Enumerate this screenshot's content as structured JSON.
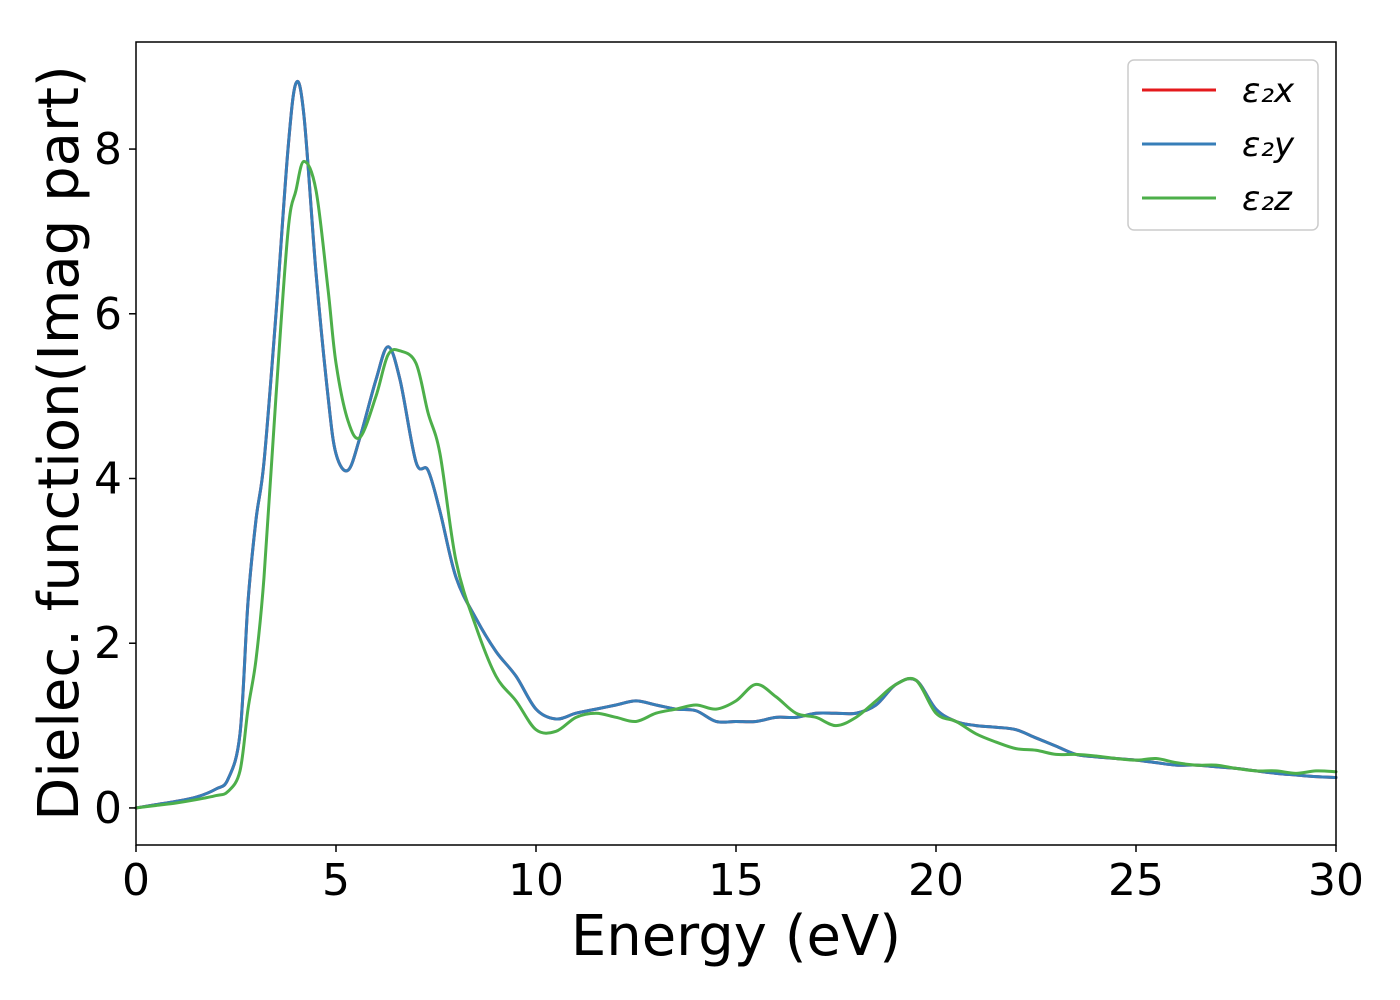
{
  "chart_data": {
    "type": "line",
    "xlabel": "Energy (eV)",
    "ylabel": "Dielec. function(Imag part)",
    "xlim": [
      0,
      30
    ],
    "ylim": [
      -0.45,
      9.3
    ],
    "xticks": [
      0,
      5,
      10,
      15,
      20,
      25,
      30
    ],
    "yticks": [
      0,
      2,
      4,
      6,
      8
    ],
    "grid": false,
    "legend_position": "top-right",
    "x": [
      0,
      0.5,
      1,
      1.5,
      2,
      2.3,
      2.6,
      2.8,
      3,
      3.2,
      3.5,
      3.8,
      4,
      4.2,
      4.5,
      4.8,
      5,
      5.3,
      5.6,
      6,
      6.3,
      6.6,
      7,
      7.3,
      7.6,
      8,
      8.5,
      9,
      9.5,
      10,
      10.5,
      11,
      11.5,
      12,
      12.5,
      13,
      13.5,
      14,
      14.5,
      15,
      15.5,
      16,
      16.5,
      17,
      17.5,
      18,
      18.5,
      19,
      19.5,
      20,
      20.5,
      21,
      21.5,
      22,
      22.5,
      23,
      23.5,
      24,
      24.5,
      25,
      25.5,
      26,
      26.5,
      27,
      27.5,
      28,
      28.5,
      29,
      29.5,
      30
    ],
    "series": [
      {
        "name": "ε₂x",
        "color": "#e41a1c",
        "values": [
          0,
          0.04,
          0.08,
          0.13,
          0.23,
          0.35,
          0.9,
          2.5,
          3.5,
          4.2,
          6.0,
          8.0,
          8.8,
          8.4,
          6.5,
          5.0,
          4.3,
          4.1,
          4.5,
          5.2,
          5.6,
          5.2,
          4.2,
          4.1,
          3.6,
          2.8,
          2.3,
          1.9,
          1.6,
          1.2,
          1.08,
          1.15,
          1.2,
          1.25,
          1.3,
          1.25,
          1.2,
          1.18,
          1.05,
          1.05,
          1.05,
          1.1,
          1.1,
          1.15,
          1.15,
          1.15,
          1.25,
          1.5,
          1.55,
          1.2,
          1.05,
          1.0,
          0.98,
          0.95,
          0.85,
          0.75,
          0.65,
          0.62,
          0.6,
          0.58,
          0.55,
          0.52,
          0.52,
          0.5,
          0.48,
          0.45,
          0.42,
          0.4,
          0.38,
          0.37
        ]
      },
      {
        "name": "ε₂y",
        "color": "#377eb8",
        "values": [
          0,
          0.04,
          0.08,
          0.13,
          0.23,
          0.35,
          0.9,
          2.5,
          3.5,
          4.2,
          6.0,
          8.0,
          8.8,
          8.4,
          6.5,
          5.0,
          4.3,
          4.1,
          4.5,
          5.2,
          5.6,
          5.2,
          4.2,
          4.1,
          3.6,
          2.8,
          2.3,
          1.9,
          1.6,
          1.2,
          1.08,
          1.15,
          1.2,
          1.25,
          1.3,
          1.25,
          1.2,
          1.18,
          1.05,
          1.05,
          1.05,
          1.1,
          1.1,
          1.15,
          1.15,
          1.15,
          1.25,
          1.5,
          1.55,
          1.2,
          1.05,
          1.0,
          0.98,
          0.95,
          0.85,
          0.75,
          0.65,
          0.62,
          0.6,
          0.58,
          0.55,
          0.52,
          0.52,
          0.5,
          0.48,
          0.45,
          0.42,
          0.4,
          0.38,
          0.37
        ]
      },
      {
        "name": "ε₂z",
        "color": "#4daf4a",
        "values": [
          0,
          0.03,
          0.06,
          0.1,
          0.15,
          0.2,
          0.45,
          1.2,
          1.8,
          2.8,
          5.0,
          7.0,
          7.5,
          7.85,
          7.5,
          6.3,
          5.4,
          4.7,
          4.5,
          5.0,
          5.5,
          5.55,
          5.4,
          4.8,
          4.3,
          3.0,
          2.2,
          1.6,
          1.3,
          0.95,
          0.93,
          1.1,
          1.15,
          1.1,
          1.05,
          1.15,
          1.2,
          1.25,
          1.2,
          1.3,
          1.5,
          1.35,
          1.15,
          1.1,
          1.0,
          1.1,
          1.3,
          1.5,
          1.55,
          1.15,
          1.05,
          0.9,
          0.8,
          0.72,
          0.7,
          0.65,
          0.65,
          0.63,
          0.6,
          0.58,
          0.6,
          0.55,
          0.52,
          0.52,
          0.48,
          0.45,
          0.45,
          0.42,
          0.45,
          0.44
        ]
      }
    ]
  }
}
